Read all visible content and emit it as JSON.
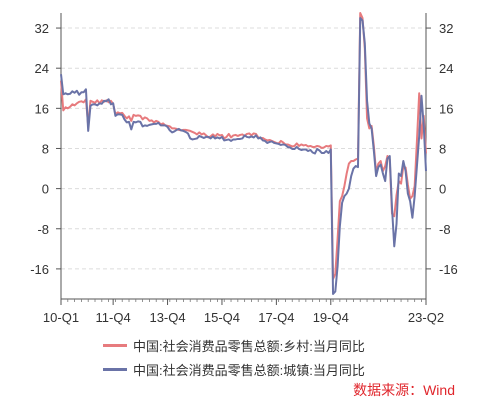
{
  "source_note": "数据来源：Wind",
  "source_color": "#e0262c",
  "chart_data": {
    "type": "line",
    "title": "",
    "xlabel": "",
    "ylabel": "",
    "ylim": [
      -22,
      35
    ],
    "yticks": [
      32,
      24,
      16,
      8,
      0,
      -8,
      -16
    ],
    "yticks_right": [
      32,
      24,
      16,
      8,
      0,
      -8,
      -16
    ],
    "grid": "horizontal dashed",
    "legend_position": "bottom",
    "x": [
      "2010-01",
      "2010-02",
      "2010-03",
      "2010-04",
      "2010-05",
      "2010-06",
      "2010-07",
      "2010-08",
      "2010-09",
      "2010-10",
      "2010-11",
      "2010-12",
      "2011-01",
      "2011-02",
      "2011-03",
      "2011-04",
      "2011-05",
      "2011-06",
      "2011-07",
      "2011-08",
      "2011-09",
      "2011-10",
      "2011-11",
      "2011-12",
      "2012-01",
      "2012-02",
      "2012-03",
      "2012-04",
      "2012-05",
      "2012-06",
      "2012-07",
      "2012-08",
      "2012-09",
      "2012-10",
      "2012-11",
      "2012-12",
      "2013-01",
      "2013-02",
      "2013-03",
      "2013-04",
      "2013-05",
      "2013-06",
      "2013-07",
      "2013-08",
      "2013-09",
      "2013-10",
      "2013-11",
      "2013-12",
      "2014-01",
      "2014-02",
      "2014-03",
      "2014-04",
      "2014-05",
      "2014-06",
      "2014-07",
      "2014-08",
      "2014-09",
      "2014-10",
      "2014-11",
      "2014-12",
      "2015-01",
      "2015-02",
      "2015-03",
      "2015-04",
      "2015-05",
      "2015-06",
      "2015-07",
      "2015-08",
      "2015-09",
      "2015-10",
      "2015-11",
      "2015-12",
      "2016-01",
      "2016-02",
      "2016-03",
      "2016-04",
      "2016-05",
      "2016-06",
      "2016-07",
      "2016-08",
      "2016-09",
      "2016-10",
      "2016-11",
      "2016-12",
      "2017-01",
      "2017-02",
      "2017-03",
      "2017-04",
      "2017-05",
      "2017-06",
      "2017-07",
      "2017-08",
      "2017-09",
      "2017-10",
      "2017-11",
      "2017-12",
      "2018-01",
      "2018-02",
      "2018-03",
      "2018-04",
      "2018-05",
      "2018-06",
      "2018-07",
      "2018-08",
      "2018-09",
      "2018-10",
      "2018-11",
      "2018-12",
      "2019-01",
      "2019-02",
      "2019-03",
      "2019-04",
      "2019-05",
      "2019-06",
      "2019-07",
      "2019-08",
      "2019-09",
      "2019-10",
      "2019-11",
      "2019-12",
      "2020-01",
      "2020-02",
      "2020-03",
      "2020-04",
      "2020-05",
      "2020-06",
      "2020-07",
      "2020-08",
      "2020-09",
      "2020-10",
      "2020-11",
      "2020-12",
      "2021-01",
      "2021-02",
      "2021-03",
      "2021-04",
      "2021-05",
      "2021-06",
      "2021-07",
      "2021-08",
      "2021-09",
      "2021-10",
      "2021-11",
      "2021-12",
      "2022-01",
      "2022-02",
      "2022-03",
      "2022-04",
      "2022-05",
      "2022-06",
      "2022-07",
      "2022-08",
      "2022-09",
      "2022-10",
      "2022-11",
      "2022-12",
      "2023-01",
      "2023-02",
      "2023-03",
      "2023-04",
      "2023-05",
      "2023-06"
    ],
    "x_tick_labels": [
      {
        "index": 0,
        "label": "10-Q1"
      },
      {
        "index": 23,
        "label": "11-Q4"
      },
      {
        "index": 47,
        "label": "13-Q4"
      },
      {
        "index": 71,
        "label": "15-Q4"
      },
      {
        "index": 95,
        "label": "17-Q4"
      },
      {
        "index": 119,
        "label": "19-Q4"
      },
      {
        "index": 161,
        "label": "23-Q2"
      }
    ],
    "series": [
      {
        "name": "中国:社会消费品零售总额:乡村:当月同比",
        "color": "#e77b7e",
        "values": [
          21.5,
          15.6,
          16.2,
          16.0,
          16.3,
          16.8,
          16.6,
          17.0,
          17.3,
          17.4,
          17.2,
          17.8,
          12.5,
          17.5,
          17.3,
          17.1,
          17.6,
          17.0,
          17.6,
          17.3,
          17.6,
          17.2,
          17.5,
          16.9,
          14.8,
          15.2,
          15.0,
          15.1,
          14.5,
          14.0,
          14.4,
          13.5,
          14.7,
          14.5,
          14.6,
          14.5,
          13.8,
          14.2,
          14.0,
          13.5,
          13.6,
          13.2,
          13.5,
          13.3,
          12.8,
          13.0,
          12.6,
          12.5,
          12.4,
          12.0,
          12.0,
          11.9,
          11.7,
          11.6,
          11.7,
          11.7,
          11.6,
          11.5,
          11.3,
          11.1,
          10.8,
          11.2,
          10.8,
          11.0,
          10.6,
          10.2,
          10.4,
          10.8,
          10.4,
          10.9,
          10.6,
          10.7,
          10.0,
          10.3,
          10.9,
          10.2,
          10.6,
          10.7,
          10.5,
          10.7,
          10.8,
          10.5,
          10.9,
          11.0,
          10.6,
          11.0,
          10.9,
          10.2,
          10.0,
          10.1,
          9.8,
          9.6,
          9.7,
          9.5,
          9.3,
          9.1,
          9.0,
          9.5,
          9.2,
          8.8,
          8.8,
          8.6,
          8.4,
          8.5,
          9.0,
          8.5,
          8.8,
          8.6,
          8.7,
          8.4,
          8.5,
          8.3,
          8.3,
          8.5,
          8.4,
          8.1,
          8.2,
          8.5,
          8.4,
          8.6,
          -18.0,
          -17.0,
          -10.0,
          -2.5,
          -1.5,
          0.5,
          3.0,
          5.0,
          5.5,
          5.5,
          5.8,
          6.0,
          35.0,
          34.0,
          28.0,
          14.0,
          12.0,
          12.5,
          8.5,
          3.2,
          5.0,
          5.5,
          3.5,
          4.5,
          6.5,
          5.8,
          -5.0,
          -5.5,
          -1.3,
          1.5,
          1.0,
          4.5,
          4.2,
          0.8,
          -2.0,
          -1.5,
          0.5,
          9.5,
          19.0,
          10.0,
          14.5,
          7.0
        ]
      },
      {
        "name": "中国:社会消费品零售总额:城镇:当月同比",
        "color": "#6a73a7",
        "values": [
          22.8,
          18.8,
          19.0,
          18.8,
          18.9,
          19.4,
          19.1,
          19.5,
          18.7,
          19.2,
          19.2,
          19.8,
          11.5,
          16.5,
          16.8,
          16.8,
          16.6,
          17.0,
          16.9,
          17.5,
          17.4,
          17.8,
          16.8,
          17.0,
          14.5,
          14.8,
          14.8,
          14.7,
          13.8,
          13.2,
          13.3,
          11.8,
          13.3,
          13.2,
          13.4,
          13.3,
          12.4,
          12.6,
          12.5,
          12.7,
          12.8,
          12.9,
          12.9,
          13.1,
          12.6,
          12.6,
          12.6,
          12.3,
          11.6,
          11.2,
          11.4,
          11.7,
          11.9,
          11.6,
          11.5,
          11.3,
          11.0,
          10.0,
          9.8,
          9.9,
          10.0,
          10.5,
          10.3,
          10.1,
          10.3,
          10.3,
          10.0,
          10.4,
          10.0,
          10.2,
          10.0,
          10.3,
          9.6,
          9.7,
          9.8,
          9.5,
          9.8,
          9.8,
          9.9,
          9.9,
          10.0,
          10.6,
          10.3,
          10.2,
          10.4,
          10.2,
          10.6,
          10.0,
          10.2,
          9.6,
          9.5,
          9.1,
          9.3,
          9.4,
          9.1,
          9.0,
          8.9,
          8.7,
          8.8,
          8.7,
          8.3,
          8.2,
          7.9,
          7.9,
          8.3,
          7.9,
          7.7,
          7.8,
          7.8,
          7.5,
          7.7,
          7.2,
          7.0,
          7.9,
          7.6,
          7.1,
          7.1,
          7.5,
          7.1,
          7.8,
          -21.0,
          -20.5,
          -15.5,
          -7.5,
          -2.8,
          -1.5,
          -1.0,
          0.0,
          2.5,
          4.0,
          4.5,
          4.3,
          34.0,
          33.5,
          29.0,
          17.5,
          13.0,
          12.0,
          7.5,
          2.5,
          4.3,
          4.8,
          3.0,
          1.5,
          6.0,
          6.5,
          -3.8,
          -11.5,
          -7.0,
          3.0,
          2.5,
          5.5,
          3.5,
          -1.0,
          -2.5,
          -5.8,
          -1.5,
          4.5,
          10.5,
          18.5,
          12.5,
          3.5
        ]
      }
    ]
  }
}
